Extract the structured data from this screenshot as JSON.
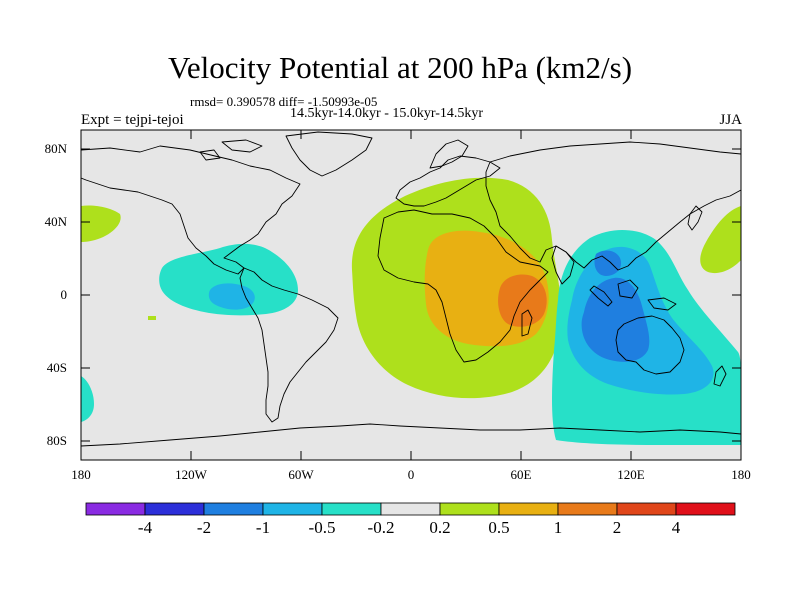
{
  "header": {
    "title": "Velocity Potential at 200 hPa (km2/s)",
    "stats": "rmsd= 0.390578 diff= -1.50993e-05",
    "periods": "14.5kyr-14.0kyr - 15.0kyr-14.5kyr",
    "experiment": "Expt = tejpi-tejoi",
    "season": "JJA"
  },
  "map": {
    "lat_labels": [
      "80N",
      "40N",
      "0",
      "40S",
      "80S"
    ],
    "lon_labels": [
      "180",
      "120W",
      "60W",
      "0",
      "60E",
      "120E",
      "180"
    ],
    "background_color": "#e6e6e6"
  },
  "colorbar": {
    "labels": [
      "-4",
      "-2",
      "-1",
      "-0.5",
      "-0.2",
      "0.2",
      "0.5",
      "1",
      "2",
      "4"
    ],
    "colors": [
      "#8a2be2",
      "#2c2fd9",
      "#1f7fe0",
      "#1fb4e6",
      "#27e0c8",
      "#e6e6e6",
      "#aee01c",
      "#e8b012",
      "#e87a1a",
      "#e0461a",
      "#e0101a"
    ]
  }
}
